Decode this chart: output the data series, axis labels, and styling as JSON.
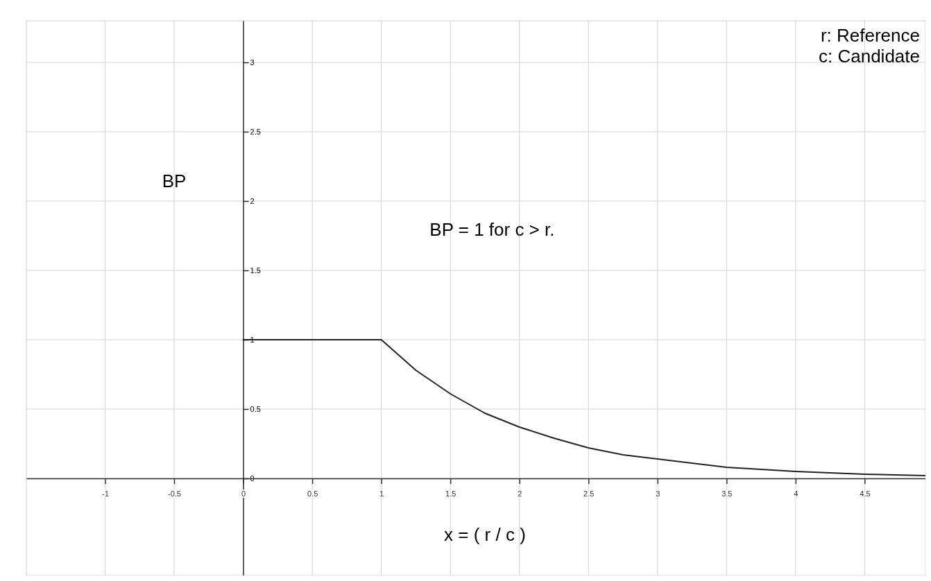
{
  "chart_data": {
    "type": "line",
    "xlabel": "x = ( r / c )",
    "ylabel": "BP",
    "annotations": [
      "BP = 1 for c > r.",
      "r: Reference",
      "c: Candidate"
    ],
    "series": [
      {
        "color": "#222222",
        "x": [
          0,
          1,
          1.25,
          1.5,
          1.75,
          2,
          2.25,
          2.5,
          2.75,
          3,
          3.5,
          4,
          4.5,
          4.94
        ],
        "values": [
          1,
          1,
          0.78,
          0.61,
          0.47,
          0.37,
          0.29,
          0.22,
          0.17,
          0.14,
          0.08,
          0.05,
          0.03,
          0.02
        ]
      }
    ],
    "xlim": [
      -1.57,
      4.94
    ],
    "ylim": [
      -0.7,
      3.3
    ],
    "xticks": [
      -1,
      -0.5,
      0,
      0.5,
      1,
      1.5,
      2,
      2.5,
      3,
      3.5,
      4,
      4.5
    ],
    "yticks": [
      0,
      0.5,
      1,
      1.5,
      2,
      2.5,
      3
    ],
    "grid": true,
    "marker": "none",
    "line_style": "solid"
  }
}
